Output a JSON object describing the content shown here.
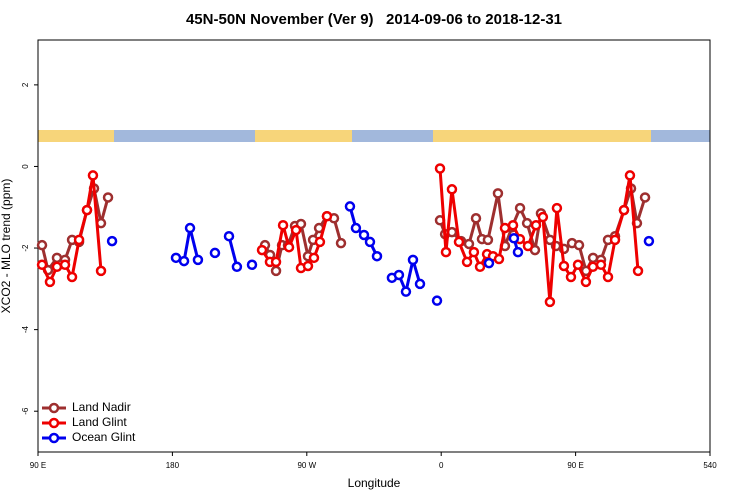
{
  "chart_data": {
    "type": "line",
    "title": "45N-50N November (Ver 9)   2014-09-06 to 2018-12-31",
    "xlabel": "Longitude",
    "ylabel": "XCO2 - MLO trend (ppm)",
    "xlim": [
      90,
      540
    ],
    "ylim": [
      -7,
      3.1
    ],
    "xticks": [
      {
        "value": 90,
        "label": "90 E"
      },
      180,
      {
        "value": 270,
        "label": "90 W"
      },
      {
        "value": 360,
        "label": "0"
      },
      {
        "value": 450,
        "label": "90 E"
      },
      540
    ],
    "yticks": [
      -6,
      -4,
      -2,
      0,
      2
    ],
    "legend": "bottom left",
    "series": [
      {
        "name": "Land Nadir",
        "color": "#9e2f2f",
        "x": [
          92.7,
          96.7,
          102.7,
          108.1,
          112.8,
          117.5,
          122.8,
          127.5,
          132.2,
          136.9,
          190,
          242.0,
          245.4,
          249.4,
          253.4,
          257.4,
          262.1,
          266.1,
          270.8,
          274.2,
          278.2,
          283.5,
          288.2,
          292.9,
          330,
          359.2,
          362.6,
          367.2,
          373.3,
          378.6,
          383.3,
          387.3,
          391.3,
          398.0,
          402.7,
          407.4,
          412.8,
          417.5,
          422.8,
          426.8,
          432.9,
          436.9,
          442.2,
          447.6,
          452.3,
          457.0,
          461.7,
          467.0,
          471.7,
          476.4,
          482.4,
          487.1,
          491.1,
          496.5
        ],
        "values": [
          -1.93,
          -2.54,
          -2.24,
          -2.29,
          -1.8,
          -1.85,
          -1.07,
          -0.54,
          -1.39,
          -0.76,
          null,
          -1.93,
          -2.17,
          -2.56,
          -1.93,
          -1.93,
          -1.46,
          -1.41,
          -2.2,
          -1.8,
          -1.51,
          -1.22,
          -1.27,
          -1.88,
          null,
          -1.32,
          -1.66,
          -1.61,
          -1.83,
          -1.9,
          -1.27,
          -1.78,
          -1.8,
          -0.66,
          -1.95,
          -1.49,
          -1.02,
          -1.39,
          -2.05,
          -1.15,
          -1.8,
          -1.95,
          -2.02,
          -1.88,
          -1.93,
          -2.56,
          -2.24,
          -2.29,
          -1.8,
          -1.71,
          -1.07,
          -0.54,
          -1.39,
          -0.76
        ]
      },
      {
        "name": "Land Glint",
        "color": "#ee0000",
        "x": [
          92.7,
          98.0,
          102.7,
          108.1,
          112.8,
          117.5,
          122.8,
          126.8,
          132.2,
          190,
          240.0,
          245.3,
          249.4,
          254.1,
          258.1,
          262.8,
          266.1,
          270.8,
          274.8,
          278.8,
          283.5,
          330,
          359.2,
          363.2,
          367.2,
          371.9,
          377.3,
          381.9,
          386.0,
          390.7,
          394.7,
          398.7,
          402.7,
          408.1,
          412.7,
          418.1,
          423.5,
          428.1,
          432.8,
          437.5,
          442.2,
          446.9,
          451.6,
          456.9,
          461.6,
          467.0,
          471.7,
          476.4,
          482.4,
          486.4,
          491.8
        ],
        "values": [
          -2.41,
          -2.83,
          -2.46,
          -2.41,
          -2.71,
          -1.8,
          -1.07,
          -0.22,
          -2.56,
          null,
          -2.05,
          -2.34,
          -2.34,
          -1.44,
          -1.98,
          -1.56,
          -2.49,
          -2.44,
          -2.24,
          -1.85,
          -1.22,
          null,
          -0.05,
          -2.1,
          -0.56,
          -1.85,
          -2.34,
          -2.1,
          -2.46,
          -2.15,
          -2.2,
          -2.27,
          -1.51,
          -1.44,
          -1.78,
          -1.95,
          -1.44,
          -1.24,
          -3.32,
          -1.02,
          -2.44,
          -2.71,
          -2.41,
          -2.83,
          -2.46,
          -2.41,
          -2.71,
          -1.8,
          -1.07,
          -0.22,
          -2.56
        ]
      },
      {
        "name": "Ocean Glint",
        "color": "#0000ee",
        "x": [
          139.6,
          160,
          182.4,
          187.8,
          191.8,
          197.1,
          203,
          208.5,
          213,
          217.9,
          223.2,
          228,
          233.3,
          260,
          298.9,
          302.9,
          308.3,
          312.3,
          317.0,
          322,
          327.0,
          331.7,
          336.4,
          341.1,
          345.8,
          350,
          357.2,
          380,
          392.0,
          400,
          408.7,
          411.4,
          450,
          499.1
        ],
        "values": [
          -1.83,
          null,
          -2.24,
          -2.32,
          -1.51,
          -2.29,
          null,
          -2.12,
          null,
          -1.71,
          -2.46,
          null,
          -2.41,
          null,
          -0.98,
          -1.51,
          -1.68,
          -1.85,
          -2.2,
          null,
          -2.73,
          -2.66,
          -3.07,
          -2.29,
          -2.88,
          null,
          -3.29,
          null,
          -2.37,
          null,
          -1.76,
          -2.1,
          null,
          -1.83
        ]
      }
    ]
  }
}
